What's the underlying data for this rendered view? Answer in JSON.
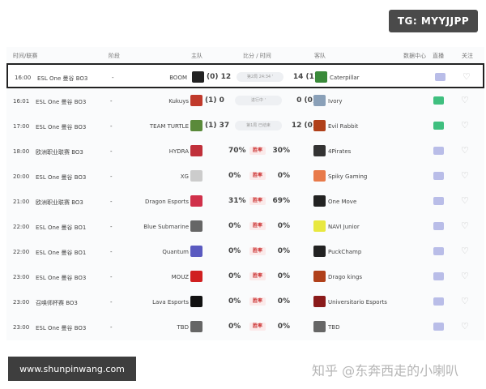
{
  "badge": "TG: MYYJJPP",
  "site": "www.shunpinwang.com",
  "watermark": "知乎 @东奔西走的小喇叭",
  "headers": {
    "time": "时间/联赛",
    "stage": "阶段",
    "home": "主队",
    "score": "比分 / 时间",
    "away": "客队",
    "data": "数据中心",
    "live": "直播",
    "follow": "关注"
  },
  "rows": [
    {
      "time": "16:00",
      "league": "ESL One 曼谷 BO3",
      "stage": "-",
      "home": "BOOM",
      "hs": "(0) 12",
      "mid": "第2局 24:34 '",
      "as": "14 (1)",
      "away": "Caterpillar",
      "hc": "#222",
      "ac": "#3a8a3a",
      "live": "#b9bde8",
      "sel": true
    },
    {
      "time": "16:01",
      "league": "ESL One 曼谷 BO3",
      "stage": "-",
      "home": "Kukuys",
      "hs": "(1) 0",
      "mid": "进行中 '",
      "as": "0 (0)",
      "away": "Ivory",
      "hc": "#c0392b",
      "ac": "#8aa0b8",
      "live": "#3fbf7f"
    },
    {
      "time": "17:00",
      "league": "ESL One 曼谷 BO3",
      "stage": "-",
      "home": "TEAM TURTLE",
      "hs": "(1) 37",
      "mid": "第1局 已结束",
      "as": "12 (0)",
      "away": "Evil Rabbit",
      "hc": "#5a8a3a",
      "ac": "#b0401a",
      "live": "#3fbf7f"
    },
    {
      "time": "18:00",
      "league": "欧洲职业联赛 BO3",
      "stage": "-",
      "home": "HYDRA",
      "hs": "70%",
      "rate": "胜率",
      "as": "30%",
      "away": "4Pirates",
      "hc": "#c0303a",
      "ac": "#333",
      "live": "#b9bde8"
    },
    {
      "time": "20:00",
      "league": "ESL One 曼谷 BO3",
      "stage": "-",
      "home": "XG",
      "hs": "0%",
      "rate": "胜率",
      "as": "0%",
      "away": "Spiky Gaming",
      "hc": "#ccc",
      "ac": "#e87a4a",
      "live": "#b9bde8"
    },
    {
      "time": "21:00",
      "league": "欧洲职业联赛 BO3",
      "stage": "-",
      "home": "Dragon Esports",
      "hs": "31%",
      "rate": "胜率",
      "as": "69%",
      "away": "One Move",
      "hc": "#d0304a",
      "ac": "#222",
      "live": "#b9bde8"
    },
    {
      "time": "22:00",
      "league": "ESL One 曼谷 BO1",
      "stage": "-",
      "home": "Blue Submarine",
      "hs": "0%",
      "rate": "胜率",
      "as": "0%",
      "away": "NAVI Junior",
      "hc": "#666",
      "ac": "#e8e840",
      "live": "#b9bde8"
    },
    {
      "time": "22:00",
      "league": "ESL One 曼谷 BO1",
      "stage": "-",
      "home": "Quantum",
      "hs": "0%",
      "rate": "胜率",
      "as": "0%",
      "away": "PuckChamp",
      "hc": "#5a5ac0",
      "ac": "#222",
      "live": "#b9bde8"
    },
    {
      "time": "23:00",
      "league": "ESL One 曼谷 BO3",
      "stage": "-",
      "home": "MOUZ",
      "hs": "0%",
      "rate": "胜率",
      "as": "0%",
      "away": "Drago kings",
      "hc": "#d02020",
      "ac": "#b0401a",
      "live": "#b9bde8"
    },
    {
      "time": "23:00",
      "league": "召唤师杯赛 BO3",
      "stage": "-",
      "home": "Lava Esports",
      "hs": "0%",
      "rate": "胜率",
      "as": "0%",
      "away": "Universitario Esports",
      "hc": "#111",
      "ac": "#8a1a1a",
      "live": "#b9bde8"
    },
    {
      "time": "23:00",
      "league": "ESL One 曼谷 BO3",
      "stage": "-",
      "home": "TBD",
      "hs": "0%",
      "rate": "胜率",
      "as": "0%",
      "away": "TBD",
      "hc": "#666",
      "ac": "#666",
      "live": "#b9bde8"
    }
  ]
}
